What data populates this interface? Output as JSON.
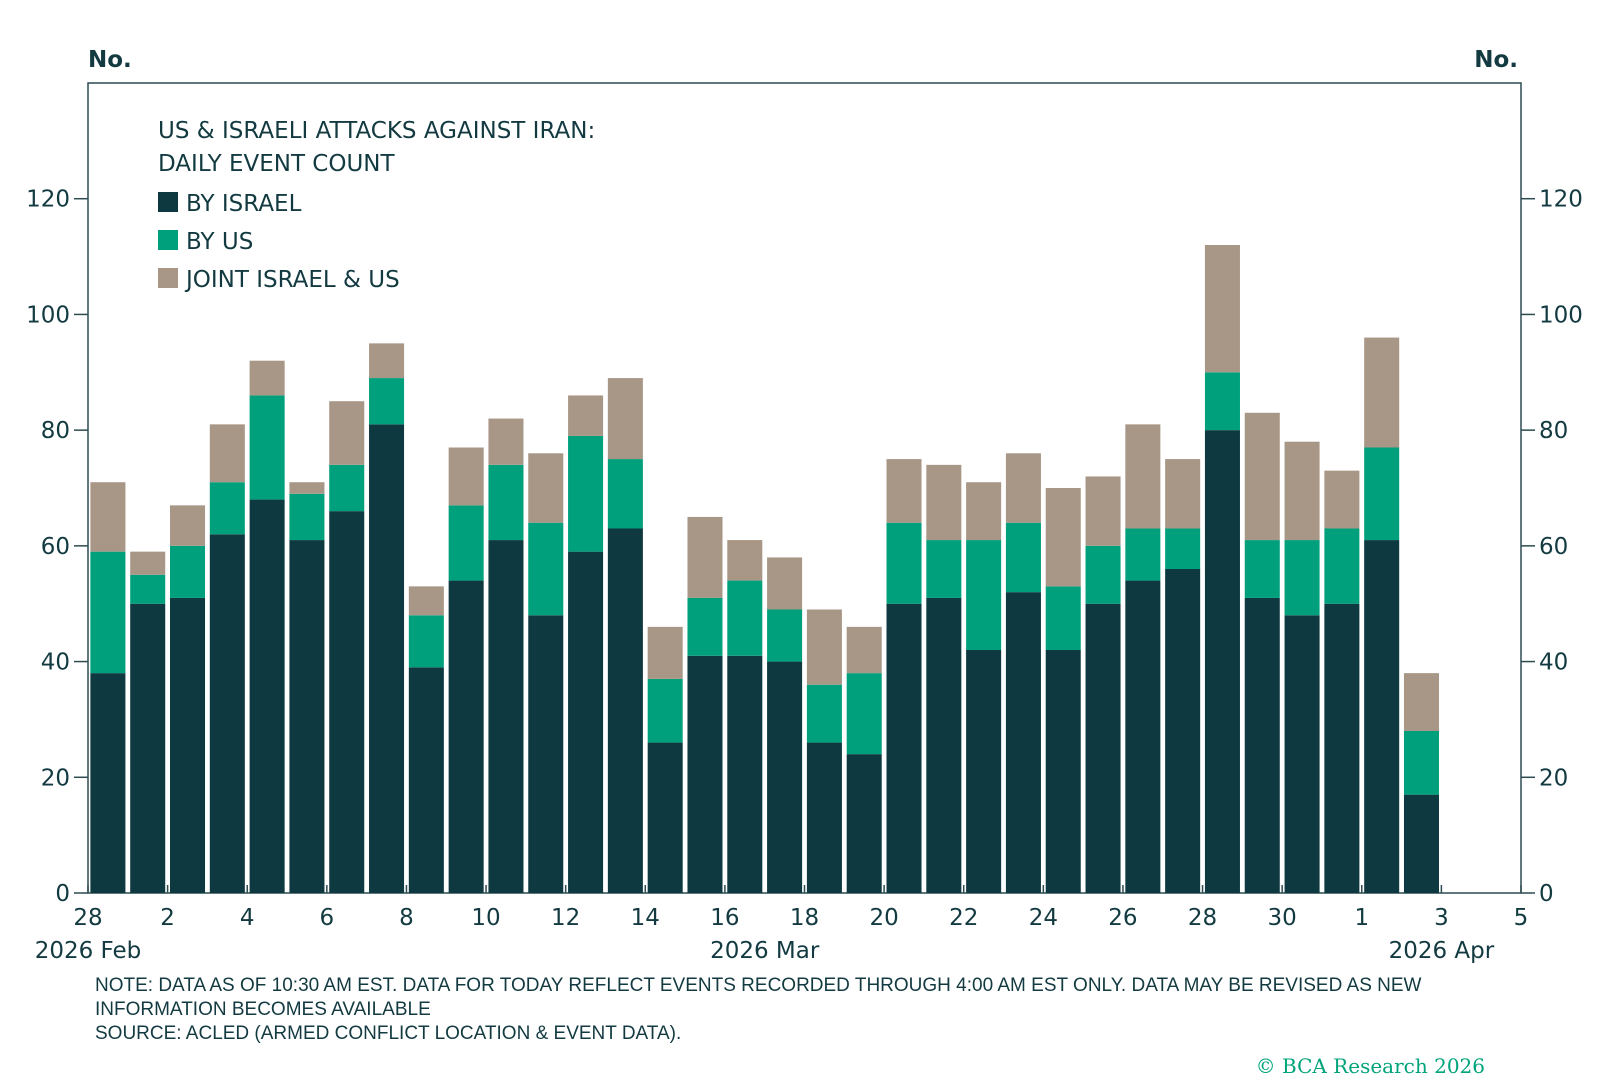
{
  "chart_data": {
    "type": "bar",
    "stacked": true,
    "title": [
      "US & ISRAELI ATTACKS AGAINST IRAN:",
      "DAILY EVENT COUNT"
    ],
    "left_unit": "No.",
    "right_unit": "No.",
    "ylim": [
      0,
      140
    ],
    "yticks": [
      0,
      20,
      40,
      60,
      80,
      100,
      120
    ],
    "x_tick_labels": [
      "28",
      "2",
      "4",
      "6",
      "8",
      "10",
      "12",
      "14",
      "16",
      "18",
      "20",
      "22",
      "24",
      "26",
      "28",
      "30",
      "1",
      "3",
      "5"
    ],
    "period_labels": [
      "2026 Feb",
      "2026 Mar",
      "2026 Apr"
    ],
    "series": [
      {
        "name": "BY ISRAEL",
        "color": "#0f3940",
        "values": [
          38,
          50,
          51,
          62,
          68,
          61,
          66,
          81,
          39,
          54,
          61,
          48,
          59,
          63,
          26,
          41,
          41,
          40,
          26,
          24,
          50,
          51,
          42,
          52,
          42,
          50,
          54,
          56,
          80,
          51,
          48,
          50,
          61,
          17
        ]
      },
      {
        "name": "BY US",
        "color": "#00a07c",
        "values": [
          21,
          5,
          9,
          9,
          18,
          8,
          8,
          8,
          9,
          13,
          13,
          16,
          20,
          12,
          11,
          10,
          13,
          9,
          10,
          14,
          14,
          10,
          19,
          12,
          11,
          10,
          9,
          7,
          10,
          10,
          13,
          13,
          16,
          11
        ]
      },
      {
        "name": "JOINT ISRAEL & US",
        "color": "#a89786",
        "values": [
          12,
          4,
          7,
          10,
          6,
          2,
          11,
          6,
          5,
          10,
          8,
          12,
          7,
          14,
          9,
          14,
          7,
          9,
          13,
          8,
          11,
          13,
          10,
          12,
          17,
          12,
          18,
          12,
          22,
          22,
          17,
          10,
          19,
          10
        ]
      }
    ]
  },
  "notes": {
    "note_line1": "NOTE: DATA AS OF 10:30 AM EST. DATA FOR TODAY REFLECT EVENTS RECORDED THROUGH 4:00 AM EST ONLY. DATA MAY BE REVISED AS NEW",
    "note_line2": "INFORMATION BECOMES AVAILABLE",
    "source": "SOURCE: ACLED (ARMED CONFLICT LOCATION & EVENT DATA)."
  },
  "brand": "© BCA Research 2026"
}
